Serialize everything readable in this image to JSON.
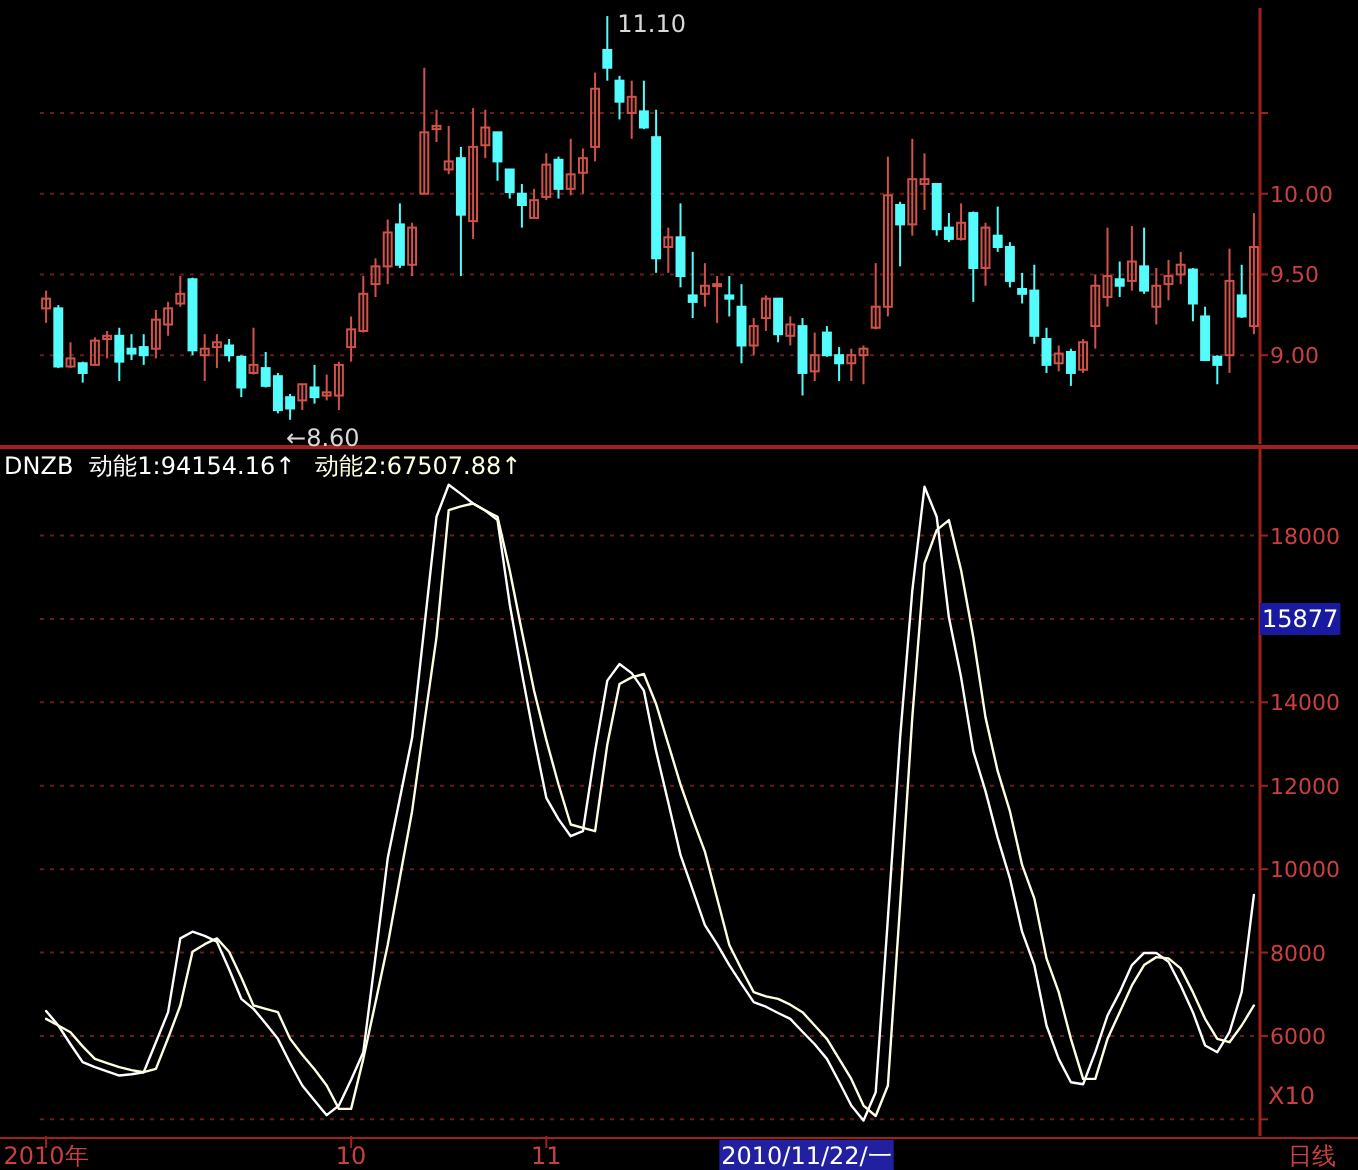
{
  "chart_data": [
    {
      "type": "candlestick",
      "categories": [
        null,
        null,
        null,
        null,
        null,
        null,
        null,
        null,
        null,
        null,
        null,
        null,
        null,
        null,
        null,
        null,
        null,
        null,
        null,
        null,
        null,
        null,
        null,
        null,
        null,
        null,
        null,
        null,
        null,
        null,
        null,
        null,
        null,
        null,
        null,
        null,
        null,
        null,
        null,
        null,
        null,
        null,
        null,
        null,
        null,
        null,
        null,
        null,
        null,
        null,
        null,
        null,
        null,
        null,
        null,
        null,
        null,
        null,
        null,
        null,
        null,
        null,
        null,
        null,
        null,
        null,
        null,
        null,
        null,
        null,
        null,
        null,
        null,
        null,
        null,
        null,
        null,
        null,
        null,
        null,
        null,
        null,
        null,
        null,
        null,
        null,
        null,
        null,
        null,
        null,
        null,
        null,
        null,
        null,
        null,
        null,
        null,
        null,
        null,
        null
      ],
      "ohlc": [
        [
          9.29,
          9.4,
          9.2,
          9.35
        ],
        [
          9.29,
          9.31,
          8.92,
          8.93
        ],
        [
          8.93,
          9.08,
          8.92,
          8.98
        ],
        [
          8.95,
          8.96,
          8.83,
          8.89
        ],
        [
          8.94,
          9.11,
          8.94,
          9.09
        ],
        [
          9.1,
          9.15,
          8.98,
          9.12
        ],
        [
          9.12,
          9.17,
          8.84,
          8.96
        ],
        [
          9.04,
          9.13,
          8.97,
          9.01
        ],
        [
          9.05,
          9.13,
          8.94,
          9.0
        ],
        [
          9.04,
          9.28,
          8.98,
          9.22
        ],
        [
          9.19,
          9.33,
          9.12,
          9.29
        ],
        [
          9.32,
          9.49,
          9.3,
          9.38
        ],
        [
          9.47,
          9.48,
          9.0,
          9.03
        ],
        [
          9.0,
          9.13,
          8.84,
          9.04
        ],
        [
          9.05,
          9.13,
          8.92,
          9.08
        ],
        [
          9.06,
          9.1,
          8.96,
          9.0
        ],
        [
          8.99,
          9.0,
          8.74,
          8.8
        ],
        [
          8.89,
          9.17,
          8.88,
          8.94
        ],
        [
          8.92,
          9.02,
          8.8,
          8.81
        ],
        [
          8.87,
          8.89,
          8.64,
          8.66
        ],
        [
          8.74,
          8.76,
          8.6,
          8.67
        ],
        [
          8.72,
          8.82,
          8.66,
          8.82
        ],
        [
          8.8,
          8.94,
          8.7,
          8.74
        ],
        [
          8.75,
          8.88,
          8.72,
          8.77
        ],
        [
          8.75,
          8.96,
          8.66,
          8.94
        ],
        [
          9.05,
          9.24,
          8.96,
          9.16
        ],
        [
          9.15,
          9.49,
          9.14,
          9.38
        ],
        [
          9.44,
          9.6,
          9.36,
          9.55
        ],
        [
          9.55,
          9.84,
          9.44,
          9.76
        ],
        [
          9.81,
          9.94,
          9.54,
          9.56
        ],
        [
          9.56,
          9.82,
          9.49,
          9.79
        ],
        [
          10.0,
          10.78,
          10.0,
          10.38
        ],
        [
          10.4,
          10.52,
          10.32,
          10.42
        ],
        [
          10.15,
          10.42,
          10.12,
          10.2
        ],
        [
          10.22,
          10.29,
          9.49,
          9.87
        ],
        [
          9.83,
          10.53,
          9.72,
          10.29
        ],
        [
          10.3,
          10.52,
          10.22,
          10.41
        ],
        [
          10.38,
          10.38,
          10.08,
          10.2
        ],
        [
          10.15,
          10.15,
          9.97,
          10.01
        ],
        [
          10.0,
          10.06,
          9.79,
          9.93
        ],
        [
          9.85,
          10.03,
          9.85,
          9.96
        ],
        [
          9.98,
          10.25,
          9.96,
          10.18
        ],
        [
          10.21,
          10.23,
          9.97,
          10.03
        ],
        [
          10.03,
          10.34,
          9.99,
          10.12
        ],
        [
          10.13,
          10.28,
          10.0,
          10.22
        ],
        [
          10.29,
          10.75,
          10.2,
          10.65
        ],
        [
          10.89,
          11.1,
          10.7,
          10.78
        ],
        [
          10.7,
          10.73,
          10.46,
          10.57
        ],
        [
          10.5,
          10.7,
          10.34,
          10.6
        ],
        [
          10.51,
          10.7,
          10.4,
          10.41
        ],
        [
          10.35,
          10.52,
          9.51,
          9.6
        ],
        [
          9.67,
          9.79,
          9.51,
          9.73
        ],
        [
          9.73,
          9.94,
          9.42,
          9.49
        ],
        [
          9.37,
          9.64,
          9.23,
          9.33
        ],
        [
          9.38,
          9.57,
          9.3,
          9.43
        ],
        [
          9.43,
          9.49,
          9.2,
          9.44
        ],
        [
          9.37,
          9.49,
          9.24,
          9.35
        ],
        [
          9.3,
          9.44,
          8.95,
          9.06
        ],
        [
          9.06,
          9.23,
          9.0,
          9.18
        ],
        [
          9.23,
          9.37,
          9.15,
          9.35
        ],
        [
          9.35,
          9.35,
          9.08,
          9.13
        ],
        [
          9.12,
          9.24,
          9.06,
          9.19
        ],
        [
          9.18,
          9.23,
          8.75,
          8.89
        ],
        [
          8.9,
          9.14,
          8.84,
          9.0
        ],
        [
          9.14,
          9.18,
          8.99,
          9.0
        ],
        [
          9.0,
          9.05,
          8.84,
          8.95
        ],
        [
          8.95,
          9.04,
          8.84,
          9.0
        ],
        [
          9.0,
          9.06,
          8.82,
          9.04
        ],
        [
          9.17,
          9.57,
          9.16,
          9.3
        ],
        [
          9.3,
          10.23,
          9.24,
          9.99
        ],
        [
          9.93,
          9.95,
          9.55,
          9.81
        ],
        [
          9.81,
          10.34,
          9.74,
          10.09
        ],
        [
          10.06,
          10.25,
          9.9,
          10.09
        ],
        [
          10.06,
          10.06,
          9.74,
          9.78
        ],
        [
          9.79,
          9.88,
          9.7,
          9.72
        ],
        [
          9.72,
          9.94,
          9.71,
          9.82
        ],
        [
          9.88,
          9.89,
          9.33,
          9.54
        ],
        [
          9.54,
          9.82,
          9.43,
          9.79
        ],
        [
          9.74,
          9.92,
          9.64,
          9.67
        ],
        [
          9.67,
          9.7,
          9.42,
          9.46
        ],
        [
          9.41,
          9.51,
          9.32,
          9.38
        ],
        [
          9.4,
          9.56,
          9.07,
          9.12
        ],
        [
          9.1,
          9.17,
          8.89,
          8.94
        ],
        [
          8.95,
          9.06,
          8.9,
          9.01
        ],
        [
          9.02,
          9.04,
          8.81,
          8.89
        ],
        [
          8.91,
          9.1,
          8.89,
          9.08
        ],
        [
          9.18,
          9.5,
          9.04,
          9.43
        ],
        [
          9.36,
          9.79,
          9.3,
          9.49
        ],
        [
          9.47,
          9.58,
          9.36,
          9.43
        ],
        [
          9.46,
          9.8,
          9.4,
          9.58
        ],
        [
          9.55,
          9.79,
          9.38,
          9.4
        ],
        [
          9.3,
          9.54,
          9.19,
          9.43
        ],
        [
          9.44,
          9.59,
          9.34,
          9.49
        ],
        [
          9.5,
          9.64,
          9.44,
          9.56
        ],
        [
          9.53,
          9.54,
          9.21,
          9.32
        ],
        [
          9.24,
          9.3,
          8.97,
          8.97
        ],
        [
          8.99,
          9.0,
          8.82,
          8.94
        ],
        [
          9.0,
          9.66,
          8.89,
          9.46
        ],
        [
          9.37,
          9.56,
          9.23,
          9.24
        ],
        [
          9.18,
          9.88,
          9.13,
          9.67
        ]
      ],
      "ylim": [
        8.45,
        11.15
      ],
      "yticks": [
        {
          "value": 9,
          "label": "9.00"
        },
        {
          "value": 9.5,
          "label": "9.50"
        },
        {
          "value": 10,
          "label": "10.00"
        },
        {
          "value": 10.5,
          "label": null
        }
      ],
      "grid": "y",
      "tick_labels": "y",
      "annotations": [
        "←8.60",
        "11.10"
      ]
    },
    {
      "type": "line",
      "title": "DNZB",
      "categories": [
        "2010年",
        null,
        null,
        null,
        null,
        null,
        null,
        null,
        null,
        null,
        null,
        null,
        null,
        null,
        null,
        null,
        null,
        null,
        null,
        null,
        null,
        null,
        null,
        null,
        null,
        "10",
        null,
        null,
        null,
        null,
        null,
        null,
        null,
        null,
        null,
        null,
        null,
        null,
        null,
        null,
        null,
        "11",
        null,
        null,
        null,
        null,
        null,
        null,
        null,
        null,
        null,
        null,
        null,
        null,
        null,
        null,
        null,
        null,
        null,
        null,
        null,
        null,
        null,
        null,
        null,
        null,
        null,
        null,
        null,
        null,
        null,
        null,
        null,
        null,
        null,
        null,
        null,
        null,
        null,
        null,
        null,
        null,
        null,
        null,
        null,
        null,
        null,
        null,
        null,
        null,
        null,
        null,
        null,
        null,
        null,
        null,
        null,
        null,
        null,
        null
      ],
      "series": [
        {
          "name": "动能1:94154.16↑",
          "color": "#ffffff",
          "values": [
            6600,
            6250,
            5800,
            5370,
            5250,
            5150,
            5050,
            5080,
            5130,
            5850,
            6570,
            8340,
            8500,
            8400,
            8260,
            7600,
            6890,
            6650,
            6300,
            5930,
            5350,
            4810,
            4450,
            4100,
            4330,
            4950,
            5610,
            7900,
            10260,
            11700,
            13150,
            15800,
            18450,
            19220,
            19000,
            18770,
            18600,
            18370,
            16360,
            14700,
            13150,
            11710,
            11200,
            10790,
            10910,
            12830,
            14520,
            14920,
            14700,
            14280,
            12830,
            11600,
            10340,
            9500,
            8660,
            8200,
            7700,
            7250,
            6810,
            6700,
            6550,
            6410,
            6100,
            5800,
            5450,
            4900,
            4330,
            3970,
            4650,
            8820,
            13150,
            16680,
            19170,
            18450,
            16040,
            14600,
            12830,
            11870,
            10750,
            9780,
            8500,
            7700,
            6250,
            5450,
            4890,
            4840,
            5610,
            6490,
            7050,
            7700,
            7990,
            7990,
            7780,
            7210,
            6570,
            5770,
            5610,
            6090,
            7050,
            9380
          ]
        },
        {
          "name": "动能2:67507.88↑",
          "color": "#ffffe0",
          "values": [
            6410,
            6250,
            6090,
            5750,
            5450,
            5350,
            5250,
            5180,
            5130,
            5210,
            5950,
            6730,
            8020,
            8200,
            8340,
            8020,
            7400,
            6730,
            6650,
            6570,
            5930,
            5550,
            5200,
            4810,
            4250,
            4250,
            5450,
            6800,
            8180,
            9800,
            11390,
            13500,
            15560,
            18610,
            18700,
            18770,
            18600,
            18450,
            17170,
            15700,
            14280,
            13100,
            12030,
            11070,
            10990,
            10910,
            12990,
            14440,
            14600,
            14680,
            13960,
            13000,
            12030,
            11200,
            10420,
            9300,
            8180,
            7600,
            7050,
            6950,
            6890,
            6750,
            6570,
            6250,
            5930,
            5450,
            4970,
            4330,
            4080,
            4810,
            9140,
            13640,
            17330,
            18130,
            18370,
            17170,
            15560,
            13640,
            12350,
            11390,
            10100,
            9300,
            7860,
            7050,
            5930,
            4970,
            4970,
            5930,
            6570,
            7210,
            7700,
            7890,
            7860,
            7620,
            7050,
            6410,
            5930,
            5850,
            6250,
            6730
          ]
        }
      ],
      "ylim": [
        3600,
        20100
      ],
      "yticks": [
        {
          "value": 4000,
          "label": null
        },
        6000,
        8000,
        10000,
        12000,
        14000,
        {
          "value": 16000,
          "label": null
        },
        18000
      ],
      "grid": "y",
      "legend": "top left",
      "line_style": "solid",
      "annotations": [
        "15877",
        "X10",
        "2010/11/22/一",
        "日线"
      ]
    }
  ]
}
